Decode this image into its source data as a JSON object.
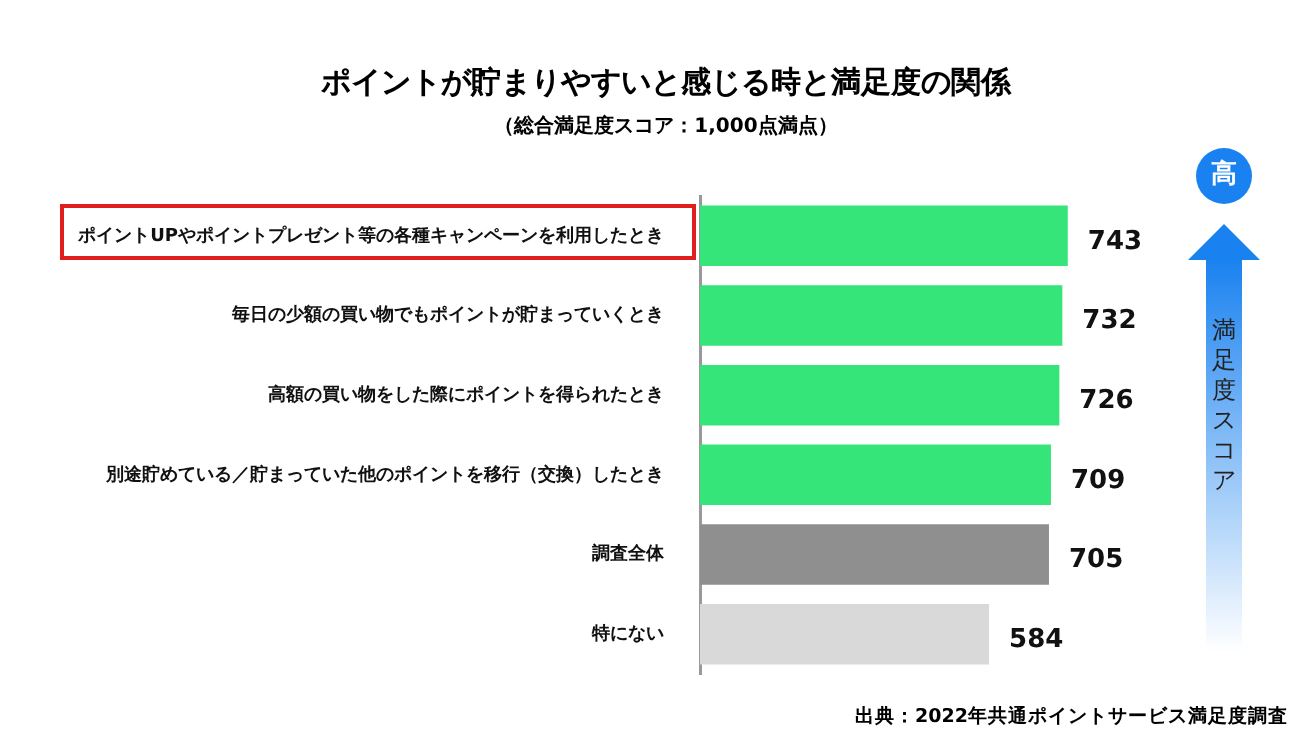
{
  "chart_data": {
    "type": "bar",
    "orientation": "horizontal",
    "title": "ポイントが貯まりやすいと感じる時と満足度の関係",
    "subtitle": "（総合満足度スコア：1,000点満点）",
    "categories": [
      "ポイントUPやポイントプレゼント等の各種キャンペーンを利用したとき",
      "毎日の少額の買い物でもポイントが貯まっていくとき",
      "高額の買い物をした際にポイントを得られたとき",
      "別途貯めている／貯まっていた他のポイントを移行（交換）したとき",
      "調査全体",
      "特にない"
    ],
    "values": [
      743,
      732,
      726,
      709,
      705,
      584
    ],
    "colors": [
      "#35e57a",
      "#35e57a",
      "#35e57a",
      "#35e57a",
      "#8f8f8f",
      "#d9d9d9"
    ],
    "data_labels": true,
    "legend": false,
    "tick_labels": "y",
    "annotations": [
      "高",
      "満足度スコア",
      "出典：2022年共通ポイントサービス満足度調査"
    ]
  }
}
